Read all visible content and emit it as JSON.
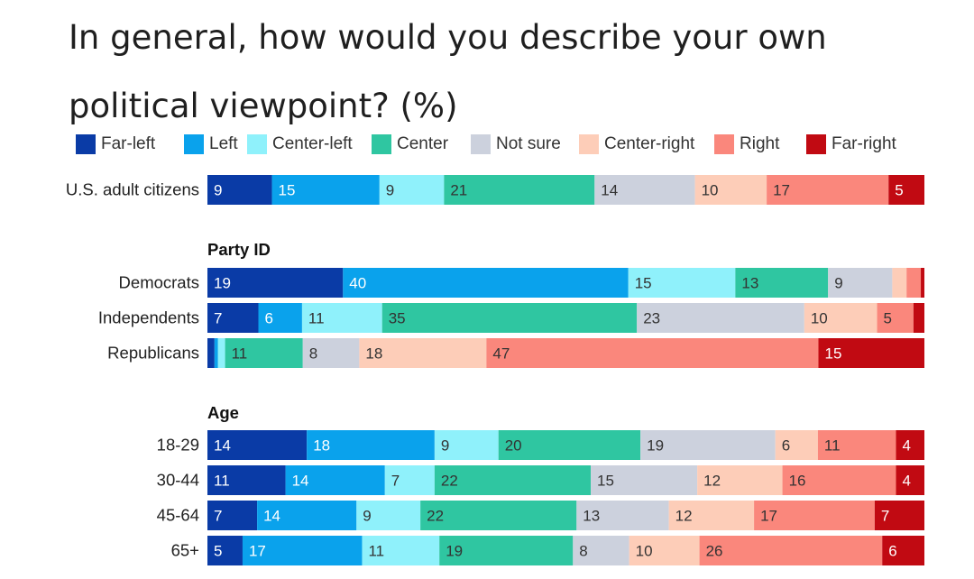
{
  "chart_data": {
    "type": "bar",
    "orientation": "horizontal",
    "stacked": true,
    "title": "In general, how would you describe your own political viewpoint? (%)",
    "legend": [
      {
        "name": "Far-left",
        "color": "#0a3ba6",
        "text_color": "#ffffff"
      },
      {
        "name": "Left",
        "color": "#0aa2ec",
        "text_color": "#ffffff"
      },
      {
        "name": "Center-left",
        "color": "#8ff1fb",
        "text_color": "#333333"
      },
      {
        "name": "Center",
        "color": "#2fc6a1",
        "text_color": "#333333"
      },
      {
        "name": "Not sure",
        "color": "#ccd1dd",
        "text_color": "#333333"
      },
      {
        "name": "Center-right",
        "color": "#fdcdb8",
        "text_color": "#333333"
      },
      {
        "name": "Right",
        "color": "#fa877c",
        "text_color": "#333333"
      },
      {
        "name": "Far-right",
        "color": "#c10a12",
        "text_color": "#ffffff"
      }
    ],
    "groups": [
      {
        "heading": "",
        "rows": [
          {
            "label": "U.S. adult citizens",
            "values": [
              9,
              15,
              9,
              21,
              14,
              10,
              17,
              5
            ],
            "labels": [
              "9",
              "15",
              "9",
              "21",
              "14",
              "10",
              "17",
              "5"
            ]
          }
        ]
      },
      {
        "heading": "Party ID",
        "rows": [
          {
            "label": "Democrats",
            "values": [
              19,
              40,
              15,
              13,
              9,
              2,
              2,
              0.5
            ],
            "labels": [
              "19",
              "40",
              "15",
              "13",
              "9",
              "",
              "",
              ""
            ]
          },
          {
            "label": "Independents",
            "values": [
              7,
              6,
              11,
              35,
              23,
              10,
              5,
              1.5
            ],
            "labels": [
              "7",
              "6",
              "11",
              "35",
              "23",
              "10",
              "5",
              ""
            ]
          },
          {
            "label": "Republicans",
            "values": [
              1,
              0.5,
              1,
              11,
              8,
              18,
              47,
              15
            ],
            "labels": [
              "",
              "",
              "",
              "11",
              "8",
              "18",
              "47",
              "15"
            ]
          }
        ]
      },
      {
        "heading": "Age",
        "rows": [
          {
            "label": "18-29",
            "values": [
              14,
              18,
              9,
              20,
              19,
              6,
              11,
              4
            ],
            "labels": [
              "14",
              "18",
              "9",
              "20",
              "19",
              "6",
              "11",
              "4"
            ]
          },
          {
            "label": "30-44",
            "values": [
              11,
              14,
              7,
              22,
              15,
              12,
              16,
              4
            ],
            "labels": [
              "11",
              "14",
              "7",
              "22",
              "15",
              "12",
              "16",
              "4"
            ]
          },
          {
            "label": "45-64",
            "values": [
              7,
              14,
              9,
              22,
              13,
              12,
              17,
              7
            ],
            "labels": [
              "7",
              "14",
              "9",
              "22",
              "13",
              "12",
              "17",
              "7"
            ]
          },
          {
            "label": "65+",
            "values": [
              5,
              17,
              11,
              19,
              8,
              10,
              26,
              6
            ],
            "labels": [
              "5",
              "17",
              "11",
              "19",
              "8",
              "10",
              "26",
              "6"
            ]
          }
        ]
      }
    ]
  }
}
